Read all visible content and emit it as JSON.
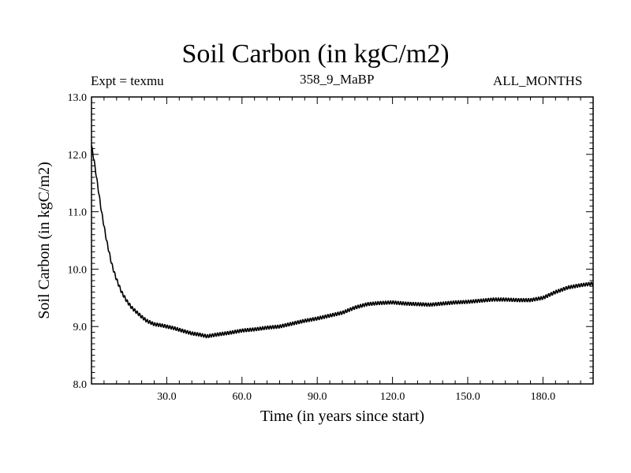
{
  "chart_data": {
    "type": "line",
    "title": "Soil Carbon (in kgC/m2)",
    "subtitle_left": "Expt = texmu",
    "subtitle_center": "358_9_MaBP",
    "subtitle_right": "ALL_MONTHS",
    "xlabel": "Time (in years since start)",
    "ylabel": "Soil Carbon (in kgC/m2)",
    "xlim": [
      0,
      200
    ],
    "ylim": [
      8.0,
      13.0
    ],
    "xticks": [
      30,
      60,
      90,
      120,
      150,
      180
    ],
    "xtick_labels": [
      "30.0",
      "60.0",
      "90.0",
      "120.0",
      "150.0",
      "180.0"
    ],
    "yticks": [
      8,
      9,
      10,
      11,
      12,
      13
    ],
    "ytick_labels": [
      "8.0",
      "9.0",
      "10.0",
      "11.0",
      "12.0",
      "13.0"
    ],
    "seasonal_amplitude": 0.03,
    "series": [
      {
        "name": "Soil Carbon",
        "x": [
          0,
          1,
          2,
          3,
          4,
          5,
          6,
          7,
          8,
          9,
          10,
          12,
          14,
          16,
          18,
          20,
          22,
          25,
          28,
          30,
          33,
          36,
          40,
          43,
          46,
          50,
          55,
          60,
          65,
          70,
          75,
          80,
          85,
          90,
          95,
          100,
          105,
          110,
          115,
          120,
          125,
          130,
          135,
          140,
          145,
          150,
          155,
          160,
          165,
          170,
          175,
          180,
          185,
          190,
          195,
          200
        ],
        "y": [
          12.15,
          11.9,
          11.6,
          11.3,
          11.0,
          10.75,
          10.5,
          10.3,
          10.1,
          9.95,
          9.82,
          9.6,
          9.45,
          9.33,
          9.25,
          9.17,
          9.1,
          9.04,
          9.02,
          9.0,
          8.97,
          8.93,
          8.88,
          8.86,
          8.83,
          8.86,
          8.89,
          8.93,
          8.95,
          8.98,
          9.0,
          9.05,
          9.1,
          9.14,
          9.19,
          9.24,
          9.33,
          9.39,
          9.41,
          9.42,
          9.4,
          9.39,
          9.38,
          9.4,
          9.42,
          9.43,
          9.45,
          9.47,
          9.47,
          9.46,
          9.46,
          9.5,
          9.6,
          9.68,
          9.72,
          9.75
        ]
      }
    ]
  }
}
